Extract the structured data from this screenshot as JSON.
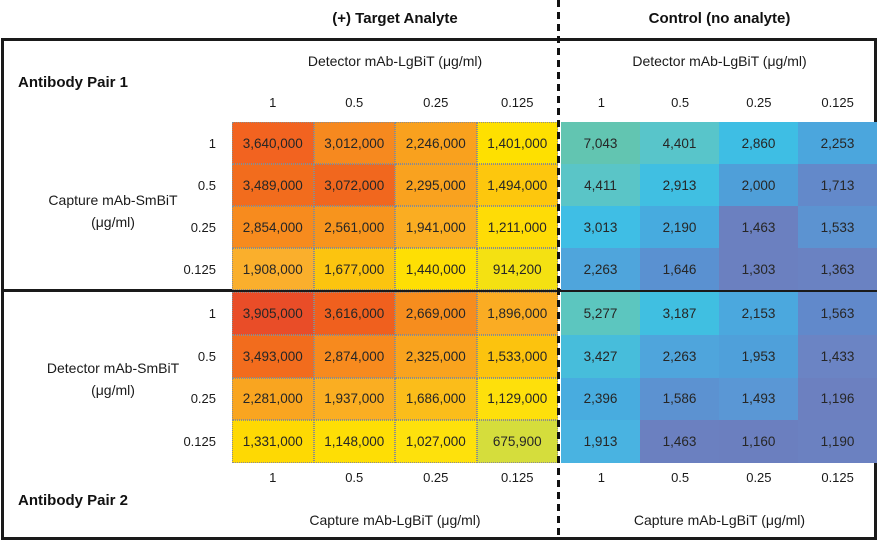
{
  "headers": {
    "target": "(+) Target Analyte",
    "control": "Control (no analyte)"
  },
  "ticks": [
    "1",
    "0.5",
    "0.25",
    "0.125"
  ],
  "axes": {
    "detector_top": "Detector mAb-LgBiT (μg/ml)",
    "capture_bottom": "Capture mAb-LgBiT (μg/ml)",
    "pair1_left": [
      "Capture mAb-SmBiT",
      "(μg/ml)"
    ],
    "pair2_left": [
      "Detector mAb-SmBiT",
      "(μg/ml)"
    ]
  },
  "pair1": {
    "title": "Antibody Pair 1"
  },
  "pair2": {
    "title": "Antibody Pair 2"
  },
  "chart_data": {
    "type": "heatmap",
    "concentration_ticks": [
      1,
      0.5,
      0.25,
      0.125
    ],
    "blocks": [
      {
        "id": "pair1-target",
        "pair": "Antibody Pair 1",
        "condition": "(+) Target Analyte",
        "col_axis": "Detector mAb-LgBiT (μg/ml)",
        "row_axis": "Capture mAb-SmBiT (μg/ml)",
        "rows": [
          1,
          0.5,
          0.25,
          0.125
        ],
        "cols": [
          1,
          0.5,
          0.25,
          0.125
        ],
        "values": [
          [
            3640000,
            3012000,
            2246000,
            1401000
          ],
          [
            3489000,
            3072000,
            2295000,
            1494000
          ],
          [
            2854000,
            2561000,
            1941000,
            1211000
          ],
          [
            1908000,
            1677000,
            1440000,
            914200
          ]
        ],
        "display": [
          [
            "3,640,000",
            "3,012,000",
            "2,246,000",
            "1,401,000"
          ],
          [
            "3,489,000",
            "3,072,000",
            "2,295,000",
            "1,494,000"
          ],
          [
            "2,854,000",
            "2,561,000",
            "1,941,000",
            "1,211,000"
          ],
          [
            "1,908,000",
            "1,677,000",
            "1,440,000",
            "914,200"
          ]
        ],
        "colors": [
          [
            "#F26320",
            "#F6891F",
            "#F9A11E",
            "#FEE000"
          ],
          [
            "#F26C1D",
            "#F1671E",
            "#F9A21F",
            "#FDC70D"
          ],
          [
            "#F78B1E",
            "#F7941D",
            "#FAAD22",
            "#FEDC06"
          ],
          [
            "#FAAF2C",
            "#FCC40F",
            "#FEDF04",
            "#F4E112"
          ]
        ],
        "dotted_grid": true
      },
      {
        "id": "pair1-control",
        "pair": "Antibody Pair 1",
        "condition": "Control (no analyte)",
        "col_axis": "Detector mAb-LgBiT (μg/ml)",
        "row_axis": "Capture mAb-SmBiT (μg/ml)",
        "rows": [
          1,
          0.5,
          0.25,
          0.125
        ],
        "cols": [
          1,
          0.5,
          0.25,
          0.125
        ],
        "values": [
          [
            7043,
            4401,
            2860,
            2253
          ],
          [
            4411,
            2913,
            2000,
            1713
          ],
          [
            3013,
            2190,
            1463,
            1533
          ],
          [
            2263,
            1646,
            1303,
            1363
          ]
        ],
        "display": [
          [
            "7,043",
            "4,401",
            "2,860",
            "2,253"
          ],
          [
            "4,411",
            "2,913",
            "2,000",
            "1,713"
          ],
          [
            "3,013",
            "2,190",
            "1,463",
            "1,533"
          ],
          [
            "2,263",
            "1,646",
            "1,303",
            "1,363"
          ]
        ],
        "colors": [
          [
            "#62C5B1",
            "#58C5CA",
            "#3EBEE4",
            "#4BA6DD"
          ],
          [
            "#5AC5C7",
            "#40BFE2",
            "#4F9FD9",
            "#6389CA"
          ],
          [
            "#3FBEE5",
            "#47ABDF",
            "#6B80C0",
            "#5C93D1"
          ],
          [
            "#4FA5DC",
            "#5A91D1",
            "#6B80C0",
            "#6A82C2"
          ]
        ],
        "dotted_grid": false
      },
      {
        "id": "pair2-target",
        "pair": "Antibody Pair 2",
        "condition": "(+) Target Analyte",
        "col_axis": "Capture mAb-LgBiT (μg/ml)",
        "row_axis": "Detector mAb-SmBiT (μg/ml)",
        "rows": [
          1,
          0.5,
          0.25,
          0.125
        ],
        "cols": [
          1,
          0.5,
          0.25,
          0.125
        ],
        "values": [
          [
            3905000,
            3616000,
            2669000,
            1896000
          ],
          [
            3493000,
            2874000,
            2325000,
            1533000
          ],
          [
            2281000,
            1937000,
            1686000,
            1129000
          ],
          [
            1331000,
            1148000,
            1027000,
            675900
          ]
        ],
        "display": [
          [
            "3,905,000",
            "3,616,000",
            "2,669,000",
            "1,896,000"
          ],
          [
            "3,493,000",
            "2,874,000",
            "2,325,000",
            "1,533,000"
          ],
          [
            "2,281,000",
            "1,937,000",
            "1,686,000",
            "1,129,000"
          ],
          [
            "1,331,000",
            "1,148,000",
            "1,027,000",
            "675,900"
          ]
        ],
        "colors": [
          [
            "#E94D28",
            "#F0601E",
            "#F68D1E",
            "#FAAC23"
          ],
          [
            "#F26C1D",
            "#F78A1E",
            "#F9A31E",
            "#FCC30E"
          ],
          [
            "#F9A520",
            "#FAAE22",
            "#FBBD1A",
            "#FEE00B"
          ],
          [
            "#FED903",
            "#FEDE05",
            "#FEE10C",
            "#D5DD3C"
          ]
        ],
        "dotted_grid": true
      },
      {
        "id": "pair2-control",
        "pair": "Antibody Pair 2",
        "condition": "Control (no analyte)",
        "col_axis": "Capture mAb-LgBiT (μg/ml)",
        "row_axis": "Detector mAb-SmBiT (μg/ml)",
        "rows": [
          1,
          0.5,
          0.25,
          0.125
        ],
        "cols": [
          1,
          0.5,
          0.25,
          0.125
        ],
        "values": [
          [
            5277,
            3187,
            2153,
            1563
          ],
          [
            3427,
            2263,
            1953,
            1433
          ],
          [
            2396,
            1586,
            1493,
            1196
          ],
          [
            1913,
            1463,
            1160,
            1190
          ]
        ],
        "display": [
          [
            "5,277",
            "3,187",
            "2,153",
            "1,563"
          ],
          [
            "3,427",
            "2,263",
            "1,953",
            "1,433"
          ],
          [
            "2,396",
            "1,586",
            "1,493",
            "1,196"
          ],
          [
            "1,913",
            "1,463",
            "1,160",
            "1,190"
          ]
        ],
        "colors": [
          [
            "#5CC6BF",
            "#40BFE1",
            "#4BA8DE",
            "#6189CB"
          ],
          [
            "#47BDDB",
            "#4FA5DC",
            "#4FA0DA",
            "#6B84C4"
          ],
          [
            "#48ACDF",
            "#5C92D1",
            "#5A97D5",
            "#6C80C0"
          ],
          [
            "#49B3E1",
            "#6B80C0",
            "#6B7FBF",
            "#6B81C1"
          ]
        ],
        "dotted_grid": false
      }
    ]
  }
}
